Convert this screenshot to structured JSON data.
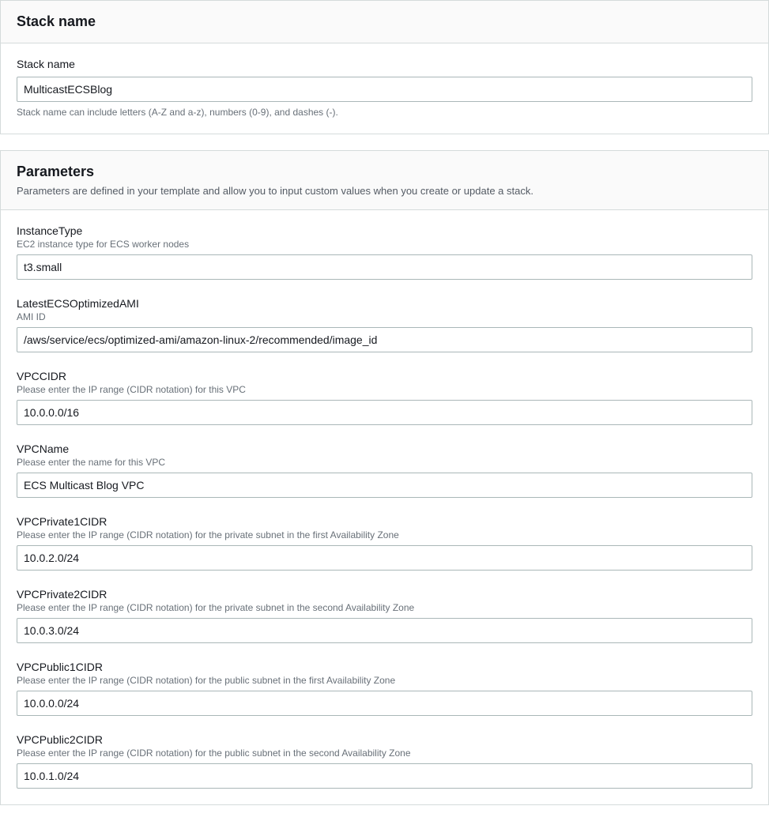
{
  "stackNameSection": {
    "heading": "Stack name",
    "fieldLabel": "Stack name",
    "value": "MulticastECSBlog",
    "hint": "Stack name can include letters (A-Z and a-z), numbers (0-9), and dashes (-)."
  },
  "parametersSection": {
    "heading": "Parameters",
    "subtitle": "Parameters are defined in your template and allow you to input custom values when you create or update a stack.",
    "fields": [
      {
        "label": "InstanceType",
        "desc": "EC2 instance type for ECS worker nodes",
        "value": "t3.small"
      },
      {
        "label": "LatestECSOptimizedAMI",
        "desc": "AMI ID",
        "value": "/aws/service/ecs/optimized-ami/amazon-linux-2/recommended/image_id"
      },
      {
        "label": "VPCCIDR",
        "desc": "Please enter the IP range (CIDR notation) for this VPC",
        "value": "10.0.0.0/16"
      },
      {
        "label": "VPCName",
        "desc": "Please enter the name for this VPC",
        "value": "ECS Multicast Blog VPC"
      },
      {
        "label": "VPCPrivate1CIDR",
        "desc": "Please enter the IP range (CIDR notation) for the private subnet in the first Availability Zone",
        "value": "10.0.2.0/24"
      },
      {
        "label": "VPCPrivate2CIDR",
        "desc": "Please enter the IP range (CIDR notation) for the private subnet in the second Availability Zone",
        "value": "10.0.3.0/24"
      },
      {
        "label": "VPCPublic1CIDR",
        "desc": "Please enter the IP range (CIDR notation) for the public subnet in the first Availability Zone",
        "value": "10.0.0.0/24"
      },
      {
        "label": "VPCPublic2CIDR",
        "desc": "Please enter the IP range (CIDR notation) for the public subnet in the second Availability Zone",
        "value": "10.0.1.0/24"
      }
    ]
  }
}
